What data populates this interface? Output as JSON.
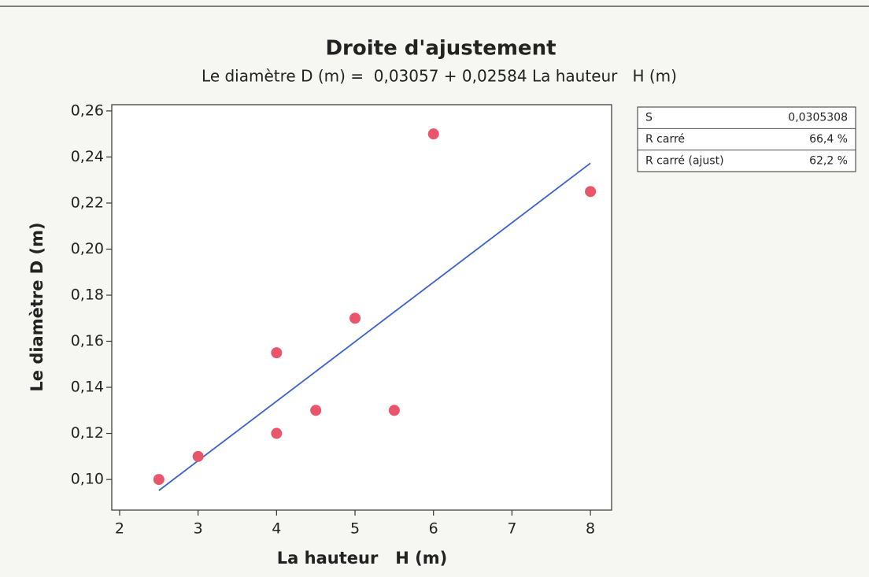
{
  "chart_data": {
    "type": "scatter",
    "title": "Droite d'ajustement",
    "subtitle": "Le diamètre D (m) =  0,03057 + 0,02584 La hauteur   H (m)",
    "x_label": "La hauteur   H (m)",
    "y_label": "Le diamètre D (m)",
    "x": [
      2.5,
      3,
      4,
      4,
      4.5,
      5,
      5.5,
      6,
      8
    ],
    "values": [
      0.1,
      0.11,
      0.155,
      0.12,
      0.13,
      0.17,
      0.13,
      0.25,
      0.225
    ],
    "color": "#e9566c",
    "fit_line": {
      "x": [
        2.5,
        8
      ],
      "values": [
        0.0952,
        0.2373
      ],
      "color": "#3b5fcd"
    },
    "xlim": [
      1.9,
      8.27
    ],
    "ylim": [
      0.0867,
      0.2627
    ],
    "xticks": [
      2,
      3,
      4,
      5,
      6,
      7,
      8
    ],
    "yticks": [
      {
        "value": 0.1,
        "label": "0,10"
      },
      {
        "value": 0.12,
        "label": "0,12"
      },
      {
        "value": 0.14,
        "label": "0,14"
      },
      {
        "value": 0.16,
        "label": "0,16"
      },
      {
        "value": 0.18,
        "label": "0,18"
      },
      {
        "value": 0.2,
        "label": "0,20"
      },
      {
        "value": 0.22,
        "label": "0,22"
      },
      {
        "value": 0.24,
        "label": "0,24"
      },
      {
        "value": 0.26,
        "label": "0,26"
      }
    ],
    "stats": [
      [
        "S",
        "0,0305308"
      ],
      [
        "R carré",
        "66,4 %"
      ],
      [
        "R carré (ajust)",
        "62,2 %"
      ]
    ]
  }
}
